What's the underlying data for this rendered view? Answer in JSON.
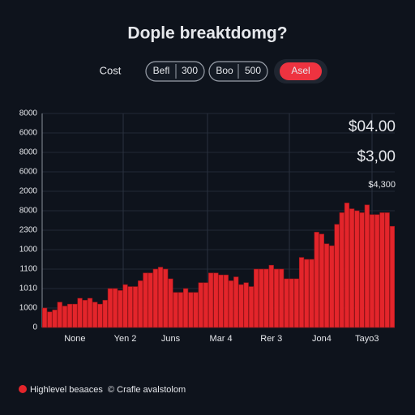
{
  "title": "Dople breaktdomg?",
  "controls": {
    "label": "Cost",
    "buttons": [
      "Befl",
      "300",
      "Boo",
      "500",
      "Asel"
    ]
  },
  "chart_data": {
    "type": "bar",
    "color": "#e3252b",
    "grid": true,
    "ylim": [
      0,
      11
    ],
    "y_labels": [
      "0",
      "1000",
      "1010",
      "1100",
      "1000",
      "2300",
      "8000",
      "2000",
      "6000",
      "8000",
      "6000",
      "8000"
    ],
    "annotations": [
      "$04.00",
      "$3,00",
      "$4,300"
    ],
    "categories": [
      null,
      null,
      null,
      null,
      null,
      null,
      "None",
      null,
      null,
      null,
      null,
      null,
      null,
      null,
      null,
      null,
      "Yen 2",
      null,
      null,
      null,
      null,
      null,
      null,
      null,
      null,
      "Juns",
      null,
      null,
      null,
      null,
      null,
      null,
      null,
      null,
      null,
      "Mar 4",
      null,
      null,
      null,
      null,
      null,
      null,
      null,
      null,
      null,
      "Rer 3",
      null,
      null,
      null,
      null,
      null,
      null,
      null,
      null,
      null,
      "Jon4",
      null,
      null,
      null,
      null,
      null,
      null,
      null,
      null,
      "Tayo3",
      null,
      null,
      null,
      null,
      null
    ],
    "values": [
      1.0,
      0.8,
      0.9,
      1.3,
      1.1,
      1.2,
      1.2,
      1.5,
      1.4,
      1.5,
      1.3,
      1.2,
      1.4,
      2.0,
      2.0,
      1.9,
      2.2,
      2.1,
      2.1,
      2.4,
      2.8,
      2.8,
      3.0,
      3.1,
      3.0,
      2.5,
      1.8,
      1.8,
      2.0,
      1.8,
      1.8,
      2.3,
      2.3,
      2.8,
      2.8,
      2.7,
      2.7,
      2.4,
      2.6,
      2.2,
      2.3,
      2.1,
      3.0,
      3.0,
      3.0,
      3.2,
      3.0,
      3.0,
      2.5,
      2.5,
      2.5,
      3.6,
      3.5,
      3.5,
      4.9,
      4.8,
      4.3,
      4.2,
      5.3,
      5.9,
      6.4,
      6.1,
      6.0,
      5.9,
      6.3,
      5.8,
      5.8,
      5.9,
      5.9,
      5.2
    ],
    "legend": [
      "Highlevel beaaces",
      "© Crafle avalstolom"
    ]
  }
}
